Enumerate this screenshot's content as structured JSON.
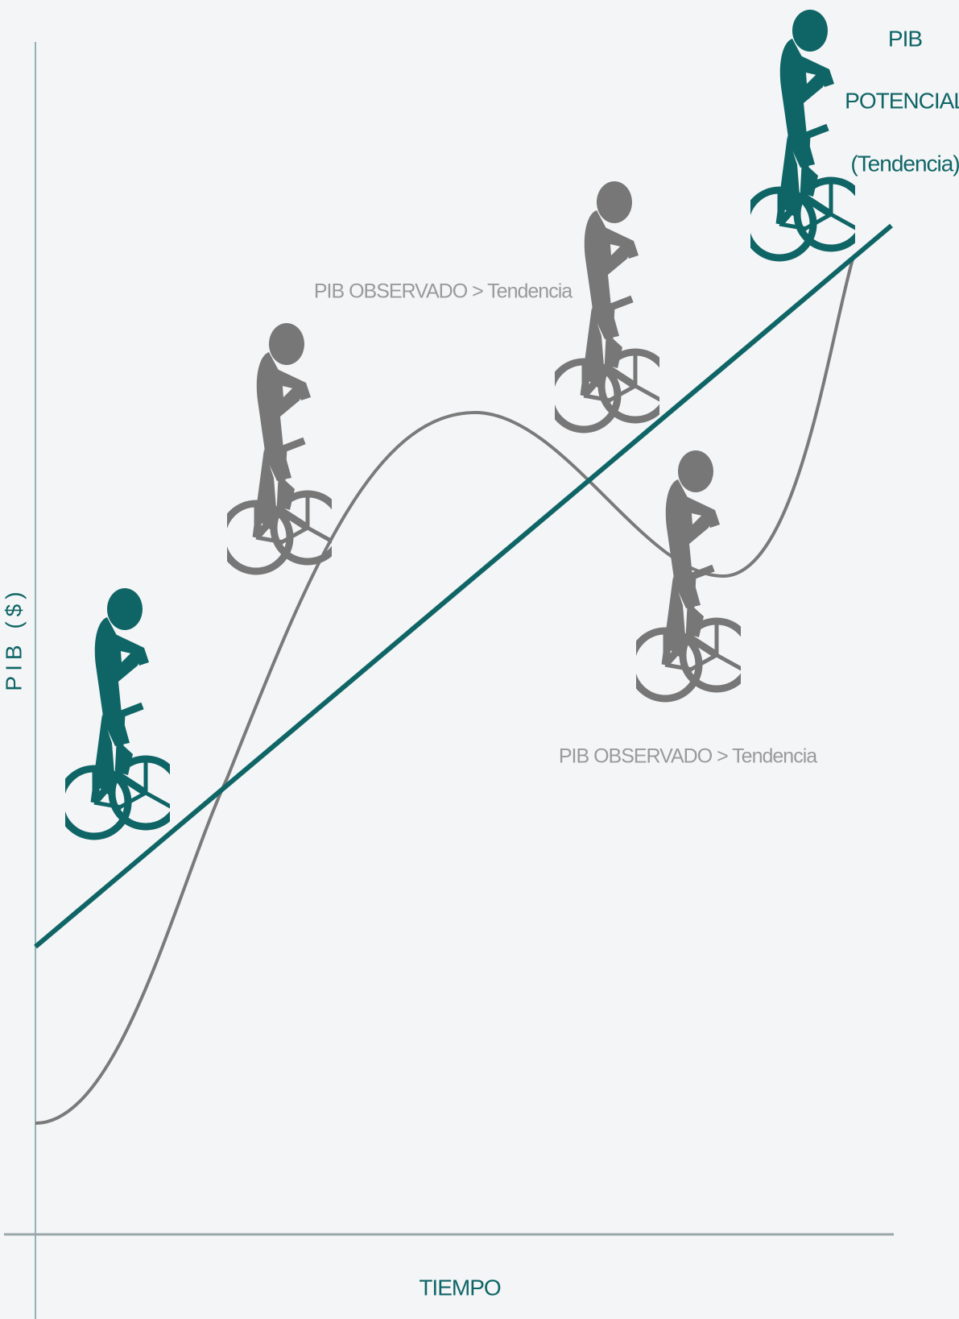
{
  "labels": {
    "potential": [
      "PIB",
      "POTENCIAL",
      "(Tendencia)"
    ],
    "observed_above": "PIB OBSERVADO > Tendencia",
    "observed_below": "PIB OBSERVADO > Tendencia",
    "y_axis": "PIB ($)",
    "x_axis": "TIEMPO"
  }
}
